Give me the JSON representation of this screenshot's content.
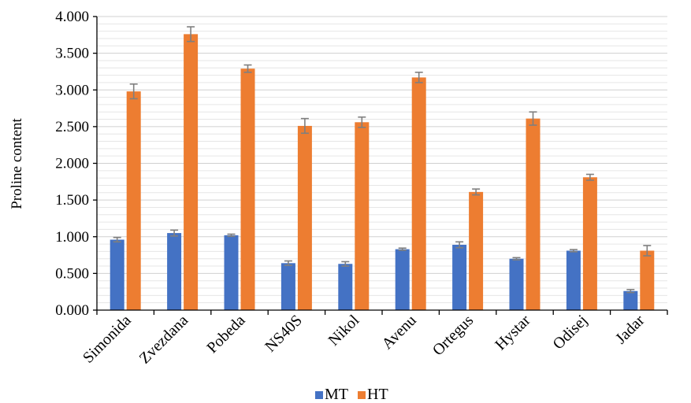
{
  "chart_data": {
    "type": "bar",
    "title": "",
    "xlabel": "",
    "ylabel": "Proline content",
    "ylim": [
      0,
      4
    ],
    "yticks": [
      0,
      0.5,
      1,
      1.5,
      2,
      2.5,
      3,
      3.5,
      4
    ],
    "ytick_labels": [
      "0.000",
      "0.500",
      "1.000",
      "1.500",
      "2.000",
      "2.500",
      "3.000",
      "3.500",
      "4.000"
    ],
    "grid": true,
    "legend_position": "bottom",
    "categories": [
      "Simonida",
      "Zvezdana",
      "Pobeda",
      "NS40S",
      "Nikol",
      "Avenu",
      "Ortegus",
      "Hystar",
      "Odisej",
      "Jadar"
    ],
    "series": [
      {
        "name": "MT",
        "color": "#4472C4",
        "values": [
          0.96,
          1.05,
          1.02,
          0.64,
          0.63,
          0.83,
          0.89,
          0.7,
          0.81,
          0.26
        ],
        "errors": [
          0.03,
          0.04,
          0.015,
          0.03,
          0.03,
          0.015,
          0.04,
          0.015,
          0.015,
          0.02
        ]
      },
      {
        "name": "HT",
        "color": "#ED7D31",
        "values": [
          2.98,
          3.76,
          3.29,
          2.51,
          2.56,
          3.17,
          1.61,
          2.61,
          1.81,
          0.81
        ],
        "errors": [
          0.1,
          0.1,
          0.05,
          0.1,
          0.07,
          0.07,
          0.04,
          0.09,
          0.04,
          0.07
        ]
      }
    ]
  }
}
